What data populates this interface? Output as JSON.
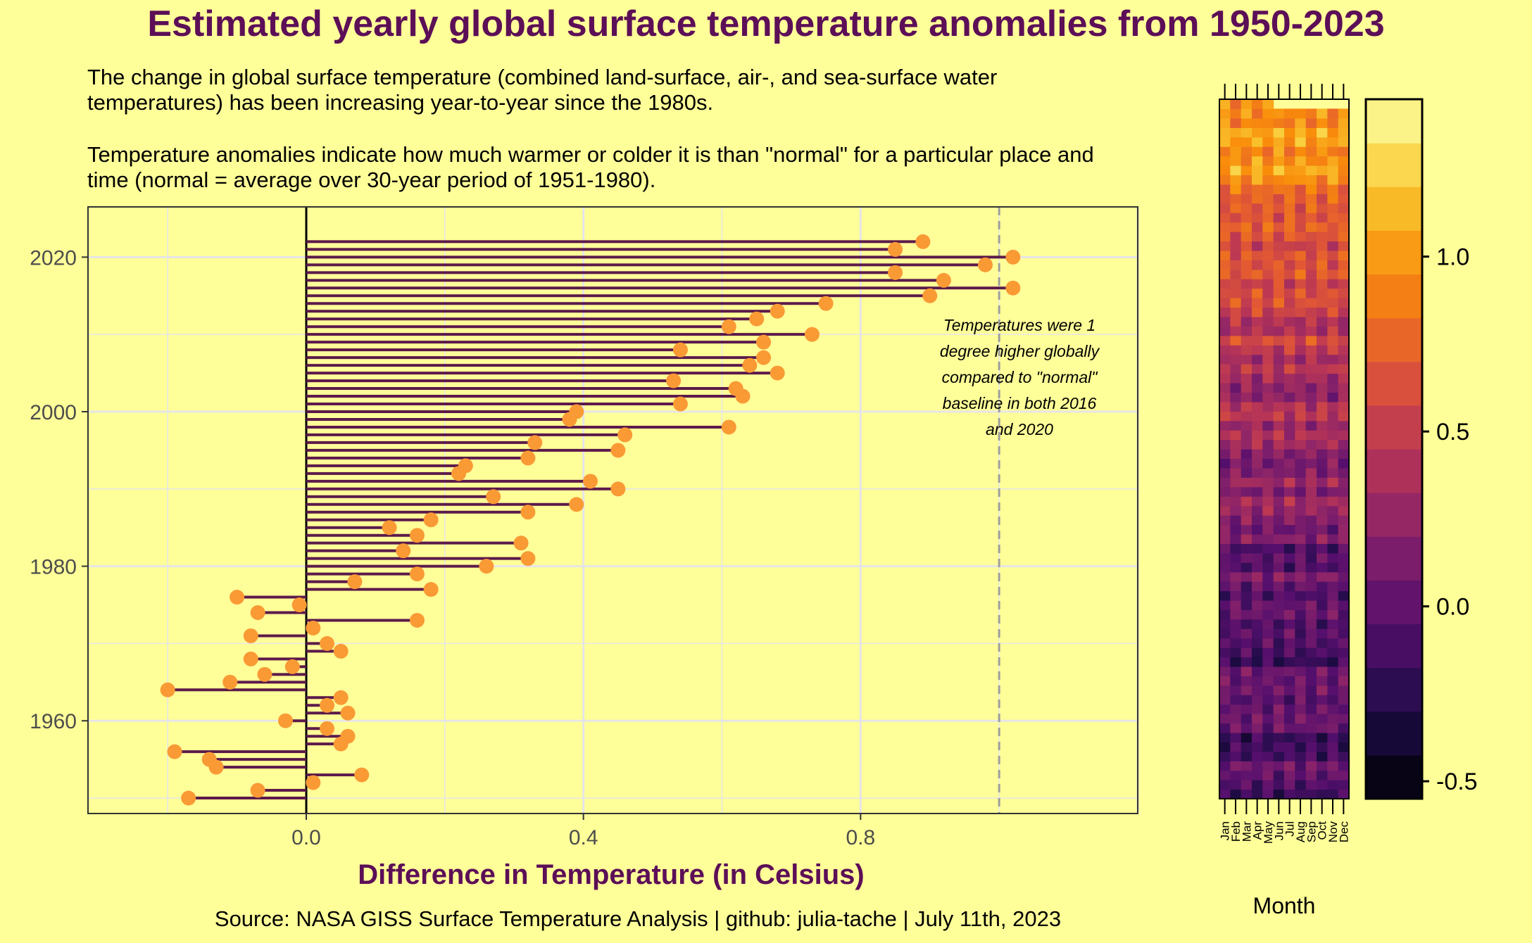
{
  "title": "Estimated yearly global surface temperature anomalies from 1950-2023",
  "subtitle_1": "The change in global surface temperature (combined land-surface, air-, and sea-surface water temperatures) has been increasing year-to-year since the 1980s.",
  "subtitle_2": "Temperature anomalies indicate how much warmer or colder it is than \"normal\" for a particular place and time (normal = average over 30-year period of 1951-1980).",
  "caption": "Source: NASA GISS Surface Temperature Analysis | github: julia-tache | July 11th, 2023",
  "colors": {
    "background": "#FFFF99",
    "title": "#5C0F57",
    "segment": "#5C1A4A",
    "point": "#F99A35",
    "grid": "#E5E5E8",
    "reference_line": "#9E9E9E"
  },
  "chart_data": [
    {
      "type": "lollipop",
      "orientation": "horizontal",
      "title": "Estimated yearly global surface temperature anomalies from 1950-2023",
      "xlabel": "Difference in Temperature (in Celsius)",
      "ylabel": "",
      "xlim": [
        -0.315,
        1.2
      ],
      "ylim": [
        1948,
        2026.5
      ],
      "x_ticks": [
        "0.0",
        "0.4",
        "0.8"
      ],
      "x_tick_values": [
        0,
        0.4,
        0.8
      ],
      "y_ticks": [
        "1960",
        "1980",
        "2000",
        "2020"
      ],
      "y_tick_values": [
        1960,
        1980,
        2000,
        2020
      ],
      "grid": true,
      "reference_line": 1.0,
      "annotation": [
        "Temperatures were 1",
        "degree higher globally",
        "compared to \"normal\"",
        "baseline in both 2016",
        "and 2020"
      ],
      "years": [
        1950,
        1951,
        1952,
        1953,
        1954,
        1955,
        1956,
        1957,
        1958,
        1959,
        1960,
        1961,
        1962,
        1963,
        1964,
        1965,
        1966,
        1967,
        1968,
        1969,
        1970,
        1971,
        1972,
        1973,
        1974,
        1975,
        1976,
        1977,
        1978,
        1979,
        1980,
        1981,
        1982,
        1983,
        1984,
        1985,
        1986,
        1987,
        1988,
        1989,
        1990,
        1991,
        1992,
        1993,
        1994,
        1995,
        1996,
        1997,
        1998,
        1999,
        2000,
        2001,
        2002,
        2003,
        2004,
        2005,
        2006,
        2007,
        2008,
        2009,
        2010,
        2011,
        2012,
        2013,
        2014,
        2015,
        2016,
        2017,
        2018,
        2019,
        2020,
        2021,
        2022
      ],
      "values": [
        -0.17,
        -0.07,
        0.01,
        0.08,
        -0.13,
        -0.14,
        -0.19,
        0.05,
        0.06,
        0.03,
        -0.03,
        0.06,
        0.03,
        0.05,
        -0.2,
        -0.11,
        -0.06,
        -0.02,
        -0.08,
        0.05,
        0.03,
        -0.08,
        0.01,
        0.16,
        -0.07,
        -0.01,
        -0.1,
        0.18,
        0.07,
        0.16,
        0.26,
        0.32,
        0.14,
        0.31,
        0.16,
        0.12,
        0.18,
        0.32,
        0.39,
        0.27,
        0.45,
        0.41,
        0.22,
        0.23,
        0.32,
        0.45,
        0.33,
        0.46,
        0.61,
        0.38,
        0.39,
        0.54,
        0.63,
        0.62,
        0.53,
        0.68,
        0.64,
        0.66,
        0.54,
        0.66,
        0.73,
        0.61,
        0.65,
        0.68,
        0.75,
        0.9,
        1.02,
        0.92,
        0.85,
        0.98,
        1.02,
        0.85,
        0.89
      ]
    },
    {
      "type": "heatmap",
      "title": "",
      "xlabel": "Month",
      "ylabel": "",
      "x_categories": [
        "Jan",
        "Feb",
        "Mar",
        "Apr",
        "May",
        "Jun",
        "Jul",
        "Aug",
        "Sep",
        "Oct",
        "Nov",
        "Dec"
      ],
      "rows_from_year": 1950,
      "rows_to_year": 2023,
      "row_order": "top = most recent year",
      "colorbar_ticks": [
        "-0.5",
        "0.0",
        "0.5",
        "1.0"
      ],
      "colorbar_tick_values": [
        -0.5,
        0,
        0.5,
        1.0
      ],
      "color_range": [
        -0.55,
        1.45
      ],
      "colormap": "inferno",
      "values": "monthly anomalies per year; rows follow the yearly values above with month-to-month variation"
    }
  ]
}
